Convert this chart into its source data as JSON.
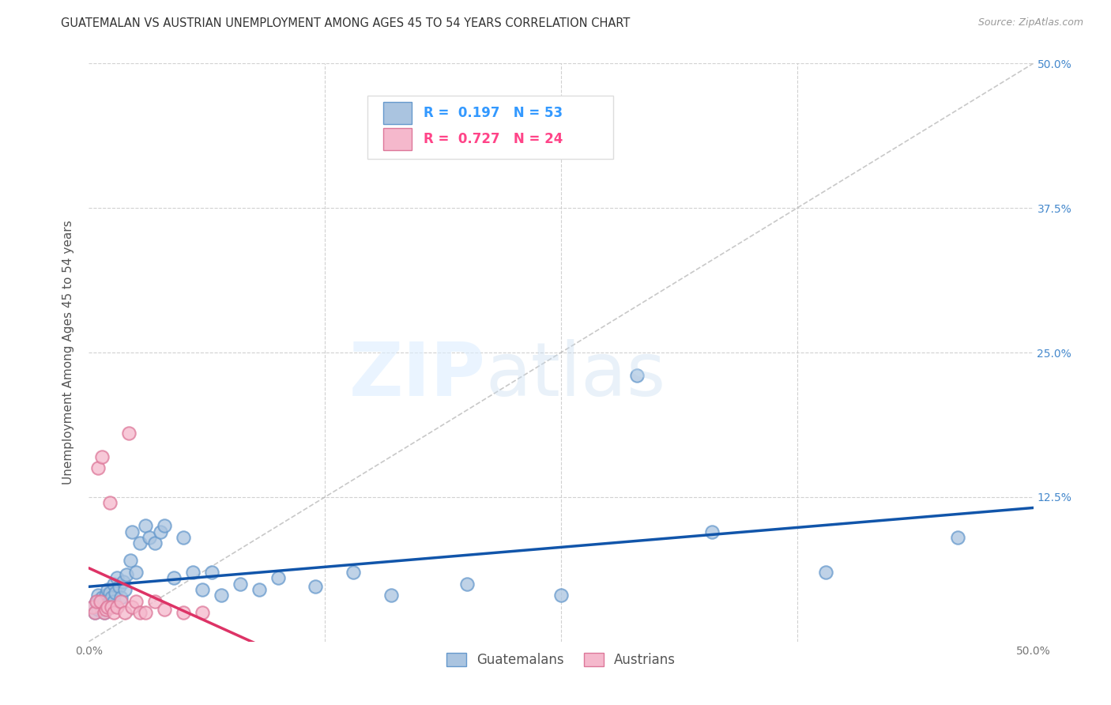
{
  "title": "GUATEMALAN VS AUSTRIAN UNEMPLOYMENT AMONG AGES 45 TO 54 YEARS CORRELATION CHART",
  "source": "Source: ZipAtlas.com",
  "ylabel": "Unemployment Among Ages 45 to 54 years",
  "xlim": [
    0,
    0.5
  ],
  "ylim": [
    0,
    0.5
  ],
  "xticks": [
    0.0,
    0.5
  ],
  "yticks": [
    0.0,
    0.125,
    0.25,
    0.375,
    0.5
  ],
  "xticklabels": [
    "0.0%",
    "50.0%"
  ],
  "left_yticklabels": [
    "",
    "",
    "",
    "",
    ""
  ],
  "right_yticklabels": [
    "",
    "12.5%",
    "25.0%",
    "37.5%",
    "50.0%"
  ],
  "legend_r_blue": "0.197",
  "legend_n_blue": "53",
  "legend_r_pink": "0.727",
  "legend_n_pink": "24",
  "blue_color": "#aac4e0",
  "pink_color": "#f5b8cc",
  "blue_edge_color": "#6699cc",
  "pink_edge_color": "#dd7799",
  "blue_line_color": "#1155aa",
  "pink_line_color": "#dd3366",
  "guatemalan_x": [
    0.002,
    0.003,
    0.004,
    0.005,
    0.005,
    0.006,
    0.007,
    0.007,
    0.008,
    0.008,
    0.009,
    0.009,
    0.01,
    0.01,
    0.011,
    0.011,
    0.012,
    0.013,
    0.013,
    0.014,
    0.015,
    0.016,
    0.017,
    0.018,
    0.019,
    0.02,
    0.022,
    0.023,
    0.025,
    0.027,
    0.03,
    0.032,
    0.035,
    0.038,
    0.04,
    0.045,
    0.05,
    0.055,
    0.06,
    0.065,
    0.07,
    0.08,
    0.09,
    0.1,
    0.12,
    0.14,
    0.16,
    0.2,
    0.25,
    0.29,
    0.33,
    0.39,
    0.46
  ],
  "guatemalan_y": [
    0.03,
    0.025,
    0.035,
    0.028,
    0.04,
    0.032,
    0.028,
    0.038,
    0.025,
    0.035,
    0.04,
    0.032,
    0.03,
    0.045,
    0.035,
    0.042,
    0.038,
    0.05,
    0.035,
    0.042,
    0.055,
    0.048,
    0.038,
    0.052,
    0.045,
    0.058,
    0.07,
    0.095,
    0.06,
    0.085,
    0.1,
    0.09,
    0.085,
    0.095,
    0.1,
    0.055,
    0.09,
    0.06,
    0.045,
    0.06,
    0.04,
    0.05,
    0.045,
    0.055,
    0.048,
    0.06,
    0.04,
    0.05,
    0.04,
    0.23,
    0.095,
    0.06,
    0.09
  ],
  "austrian_x": [
    0.002,
    0.003,
    0.004,
    0.005,
    0.006,
    0.007,
    0.008,
    0.009,
    0.01,
    0.011,
    0.012,
    0.013,
    0.015,
    0.017,
    0.019,
    0.021,
    0.023,
    0.025,
    0.027,
    0.03,
    0.035,
    0.04,
    0.05,
    0.06
  ],
  "austrian_y": [
    0.03,
    0.025,
    0.035,
    0.15,
    0.035,
    0.16,
    0.025,
    0.028,
    0.03,
    0.12,
    0.03,
    0.025,
    0.03,
    0.035,
    0.025,
    0.18,
    0.03,
    0.035,
    0.025,
    0.025,
    0.035,
    0.028,
    0.025,
    0.025
  ],
  "background_color": "#ffffff",
  "grid_color": "#cccccc",
  "title_fontsize": 10.5,
  "axis_label_fontsize": 11,
  "tick_fontsize": 10,
  "legend_fontsize": 12,
  "legend_label_blue": "Guatemalans",
  "legend_label_pink": "Austrians",
  "marker_size": 140,
  "marker_linewidth": 1.5
}
